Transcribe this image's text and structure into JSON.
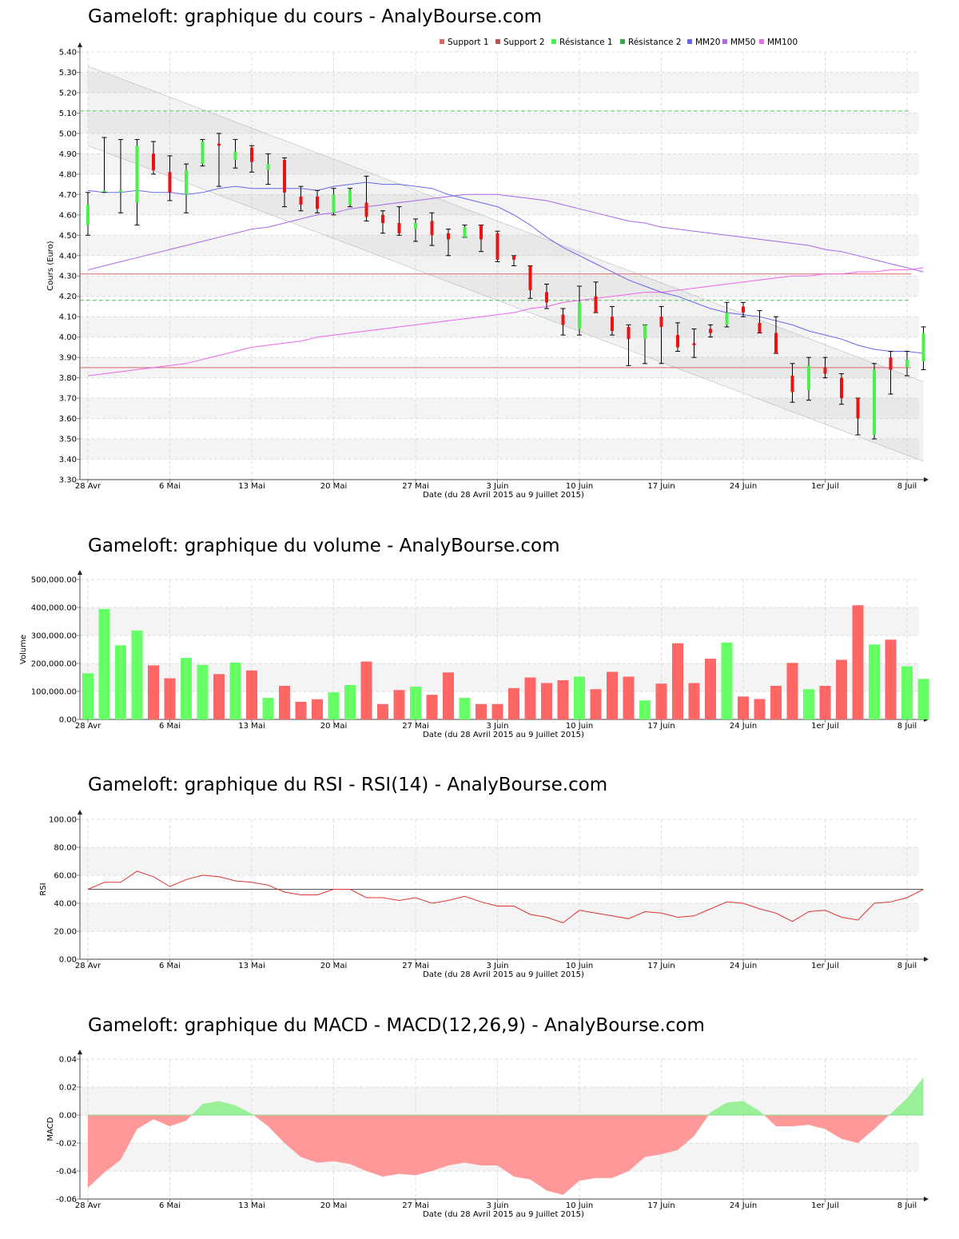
{
  "titles": {
    "price": "Gameloft: graphique du cours - AnalyBourse.com",
    "volume": "Gameloft: graphique du volume - AnalyBourse.com",
    "rsi": "Gameloft: graphique du RSI - RSI(14) - AnalyBourse.com",
    "macd": "Gameloft: graphique du MACD - MACD(12,26,9) - AnalyBourse.com"
  },
  "colors": {
    "up": "#4cf04c",
    "down": "#ee1111",
    "volume_up": "#66ff66",
    "volume_down": "#ff6666",
    "support": "#dd6666",
    "resistance": "#55bb55",
    "mm20": "#6666ee",
    "mm50": "#aa66ee",
    "mm100": "#ee66ee",
    "rsi_line": "#dd3333",
    "macd_pos": "#99f099",
    "macd_neg": "#ff9999"
  },
  "chart_data": [
    {
      "type": "candlestick",
      "title": "Gameloft: graphique du cours - AnalyBourse.com",
      "xlabel": "Date (du 28 Avril 2015 au 9 Juillet 2015)",
      "ylabel": "Cours (Euro)",
      "ylim": [
        3.3,
        5.4
      ],
      "yticks": [
        "3.30",
        "3.40",
        "3.50",
        "3.60",
        "3.70",
        "3.80",
        "3.90",
        "4.00",
        "4.10",
        "4.20",
        "4.30",
        "4.40",
        "4.50",
        "4.60",
        "4.70",
        "4.80",
        "4.90",
        "5.00",
        "5.10",
        "5.20",
        "5.30",
        "5.40"
      ],
      "xtick_labels": [
        "28 Avr",
        "6 Mai",
        "13 Mai",
        "20 Mai",
        "27 Mai",
        "3 Juin",
        "10 Juin",
        "17 Juin",
        "24 Juin",
        "1er Juil",
        "8 Juil"
      ],
      "xtick_index": [
        0,
        5,
        10,
        15,
        20,
        25,
        30,
        35,
        40,
        45,
        50
      ],
      "legend": [
        "Support 1",
        "Support 2",
        "Résistance 1",
        "Résistance 2",
        "MM20",
        "MM50",
        "MM100"
      ],
      "legend_placement": "top",
      "grid": true,
      "levels": {
        "support_1": 4.31,
        "support_2": 3.85,
        "resistance_1": 4.18,
        "resistance_2": 5.11
      },
      "channel": {
        "upper": [
          5.33,
          3.78
        ],
        "lower": [
          4.94,
          3.39
        ]
      },
      "ohlc": [
        [
          4.55,
          4.71,
          4.5,
          4.65
        ],
        [
          4.72,
          4.98,
          4.71,
          4.72
        ],
        [
          4.71,
          4.97,
          4.61,
          4.72
        ],
        [
          4.66,
          4.97,
          4.55,
          4.94
        ],
        [
          4.9,
          4.96,
          4.8,
          4.82
        ],
        [
          4.81,
          4.89,
          4.67,
          4.71
        ],
        [
          4.7,
          4.85,
          4.61,
          4.82
        ],
        [
          4.85,
          4.97,
          4.84,
          4.96
        ],
        [
          4.95,
          5.0,
          4.74,
          4.94
        ],
        [
          4.87,
          4.97,
          4.83,
          4.91
        ],
        [
          4.93,
          4.94,
          4.81,
          4.86
        ],
        [
          4.82,
          4.9,
          4.75,
          4.85
        ],
        [
          4.87,
          4.88,
          4.64,
          4.71
        ],
        [
          4.69,
          4.74,
          4.62,
          4.65
        ],
        [
          4.69,
          4.72,
          4.61,
          4.63
        ],
        [
          4.61,
          4.73,
          4.6,
          4.7
        ],
        [
          4.65,
          4.73,
          4.64,
          4.72
        ],
        [
          4.66,
          4.79,
          4.57,
          4.59
        ],
        [
          4.6,
          4.62,
          4.51,
          4.56
        ],
        [
          4.56,
          4.64,
          4.5,
          4.51
        ],
        [
          4.53,
          4.58,
          4.47,
          4.56
        ],
        [
          4.57,
          4.61,
          4.45,
          4.5
        ],
        [
          4.51,
          4.53,
          4.4,
          4.48
        ],
        [
          4.49,
          4.55,
          4.49,
          4.54
        ],
        [
          4.55,
          4.55,
          4.42,
          4.48
        ],
        [
          4.51,
          4.52,
          4.37,
          4.38
        ],
        [
          4.4,
          4.4,
          4.35,
          4.38
        ],
        [
          4.35,
          4.35,
          4.19,
          4.23
        ],
        [
          4.22,
          4.26,
          4.14,
          4.17
        ],
        [
          4.11,
          4.14,
          4.01,
          4.06
        ],
        [
          4.04,
          4.25,
          4.01,
          4.17
        ],
        [
          4.2,
          4.27,
          4.12,
          4.12
        ],
        [
          4.1,
          4.15,
          4.01,
          4.03
        ],
        [
          4.05,
          4.06,
          3.86,
          3.99
        ],
        [
          3.99,
          4.06,
          3.87,
          4.06
        ],
        [
          4.1,
          4.15,
          3.87,
          4.05
        ],
        [
          4.01,
          4.07,
          3.93,
          3.95
        ],
        [
          3.97,
          4.04,
          3.9,
          3.96
        ],
        [
          4.04,
          4.06,
          4.0,
          4.02
        ],
        [
          4.06,
          4.17,
          4.05,
          4.12
        ],
        [
          4.15,
          4.17,
          4.1,
          4.12
        ],
        [
          4.07,
          4.13,
          4.02,
          4.02
        ],
        [
          4.02,
          4.1,
          3.92,
          3.92
        ],
        [
          3.81,
          3.87,
          3.68,
          3.73
        ],
        [
          3.74,
          3.9,
          3.69,
          3.86
        ],
        [
          3.85,
          3.9,
          3.8,
          3.82
        ],
        [
          3.8,
          3.82,
          3.67,
          3.7
        ],
        [
          3.7,
          3.7,
          3.52,
          3.6
        ],
        [
          3.52,
          3.87,
          3.5,
          3.84
        ],
        [
          3.9,
          3.93,
          3.72,
          3.84
        ],
        [
          3.85,
          3.93,
          3.81,
          3.89
        ],
        [
          3.88,
          4.05,
          3.84,
          4.02
        ]
      ],
      "mm20": [
        4.72,
        4.71,
        4.71,
        4.72,
        4.71,
        4.71,
        4.7,
        4.71,
        4.73,
        4.74,
        4.73,
        4.73,
        4.73,
        4.73,
        4.72,
        4.74,
        4.75,
        4.76,
        4.75,
        4.75,
        4.74,
        4.73,
        4.7,
        4.68,
        4.66,
        4.64,
        4.6,
        4.55,
        4.49,
        4.44,
        4.4,
        4.36,
        4.32,
        4.28,
        4.25,
        4.22,
        4.2,
        4.17,
        4.14,
        4.12,
        4.11,
        4.1,
        4.08,
        4.06,
        4.03,
        4.01,
        3.99,
        3.96,
        3.94,
        3.93,
        3.93,
        3.92
      ],
      "mm50": [
        4.33,
        4.35,
        4.37,
        4.39,
        4.41,
        4.43,
        4.45,
        4.47,
        4.49,
        4.51,
        4.53,
        4.54,
        4.56,
        4.58,
        4.6,
        4.61,
        4.63,
        4.64,
        4.65,
        4.66,
        4.67,
        4.68,
        4.69,
        4.7,
        4.7,
        4.7,
        4.69,
        4.68,
        4.67,
        4.65,
        4.63,
        4.61,
        4.59,
        4.57,
        4.56,
        4.54,
        4.53,
        4.52,
        4.51,
        4.5,
        4.49,
        4.48,
        4.47,
        4.46,
        4.45,
        4.43,
        4.42,
        4.4,
        4.38,
        4.36,
        4.34,
        4.32
      ],
      "mm100": [
        3.81,
        3.82,
        3.83,
        3.84,
        3.85,
        3.86,
        3.87,
        3.89,
        3.91,
        3.93,
        3.95,
        3.96,
        3.97,
        3.98,
        4.0,
        4.01,
        4.02,
        4.03,
        4.04,
        4.05,
        4.06,
        4.07,
        4.08,
        4.09,
        4.1,
        4.11,
        4.12,
        4.14,
        4.15,
        4.17,
        4.18,
        4.19,
        4.2,
        4.21,
        4.22,
        4.22,
        4.23,
        4.24,
        4.25,
        4.26,
        4.27,
        4.28,
        4.29,
        4.3,
        4.3,
        4.31,
        4.31,
        4.32,
        4.32,
        4.33,
        4.33,
        4.34
      ]
    },
    {
      "type": "bar",
      "title": "Gameloft: graphique du volume - AnalyBourse.com",
      "xlabel": "Date (du 28 Avril 2015 au 9 Juillet 2015)",
      "ylabel": "Volume",
      "ylim": [
        0,
        500000
      ],
      "yticks": [
        "0.00",
        "100,000.00",
        "200,000.00",
        "300,000.00",
        "400,000.00",
        "500,000.00"
      ],
      "xtick_labels": [
        "28 Avr",
        "6 Mai",
        "13 Mai",
        "20 Mai",
        "27 Mai",
        "3 Juin",
        "10 Juin",
        "17 Juin",
        "24 Juin",
        "1er Juil",
        "8 Juil"
      ],
      "grid": true,
      "values": [
        165000,
        395000,
        265000,
        318000,
        193000,
        147000,
        220000,
        195000,
        162000,
        203000,
        175000,
        77000,
        120000,
        63000,
        72000,
        97000,
        123000,
        207000,
        55000,
        105000,
        117000,
        88000,
        168000,
        77000,
        55000,
        55000,
        112000,
        150000,
        130000,
        140000,
        153000,
        108000,
        170000,
        153000,
        68000,
        128000,
        272000,
        130000,
        217000,
        275000,
        82000,
        73000,
        120000,
        202000,
        108000,
        120000,
        213000,
        408000,
        268000,
        285000,
        190000,
        145000
      ]
    },
    {
      "type": "line",
      "title": "Gameloft: graphique du RSI - RSI(14) - AnalyBourse.com",
      "xlabel": "Date (du 28 Avril 2015 au 9 Juillet 2015)",
      "ylabel": "RSI",
      "ylim": [
        0,
        100
      ],
      "yticks": [
        "0.00",
        "20.00",
        "40.00",
        "60.00",
        "80.00",
        "100.00"
      ],
      "xtick_labels": [
        "28 Avr",
        "6 Mai",
        "13 Mai",
        "20 Mai",
        "27 Mai",
        "3 Juin",
        "10 Juin",
        "17 Juin",
        "24 Juin",
        "1er Juil",
        "8 Juil"
      ],
      "grid": true,
      "reference_line": 50,
      "values": [
        50,
        55,
        55,
        63,
        59,
        52,
        57,
        60,
        59,
        56,
        55,
        53,
        48,
        46,
        46,
        50,
        50,
        44,
        44,
        42,
        44,
        40,
        42,
        45,
        41,
        38,
        38,
        32,
        30,
        26,
        35,
        33,
        31,
        29,
        34,
        33,
        30,
        31,
        36,
        41,
        40,
        36,
        33,
        27,
        34,
        35,
        30,
        28,
        40,
        41,
        44,
        50
      ]
    },
    {
      "type": "area",
      "title": "Gameloft: graphique du MACD - MACD(12,26,9) - AnalyBourse.com",
      "xlabel": "Date (du 28 Avril 2015 au 9 Juillet 2015)",
      "ylabel": "MACD",
      "ylim": [
        -0.06,
        0.04
      ],
      "yticks": [
        "-0.06",
        "-0.04",
        "-0.02",
        "0.00",
        "0.02",
        "0.04"
      ],
      "xtick_labels": [
        "28 Avr",
        "6 Mai",
        "13 Mai",
        "20 Mai",
        "27 Mai",
        "3 Juin",
        "10 Juin",
        "17 Juin",
        "24 Juin",
        "1er Juil",
        "8 Juil"
      ],
      "grid": true,
      "values": [
        -0.052,
        -0.041,
        -0.032,
        -0.01,
        -0.003,
        -0.008,
        -0.004,
        0.008,
        0.01,
        0.007,
        0.001,
        -0.008,
        -0.02,
        -0.03,
        -0.034,
        -0.033,
        -0.035,
        -0.04,
        -0.044,
        -0.042,
        -0.043,
        -0.04,
        -0.036,
        -0.034,
        -0.036,
        -0.036,
        -0.044,
        -0.046,
        -0.054,
        -0.057,
        -0.047,
        -0.045,
        -0.045,
        -0.04,
        -0.03,
        -0.028,
        -0.025,
        -0.015,
        0.002,
        0.009,
        0.01,
        0.003,
        -0.008,
        -0.008,
        -0.007,
        -0.01,
        -0.017,
        -0.02,
        -0.01,
        0.001,
        0.012,
        0.027
      ]
    }
  ]
}
